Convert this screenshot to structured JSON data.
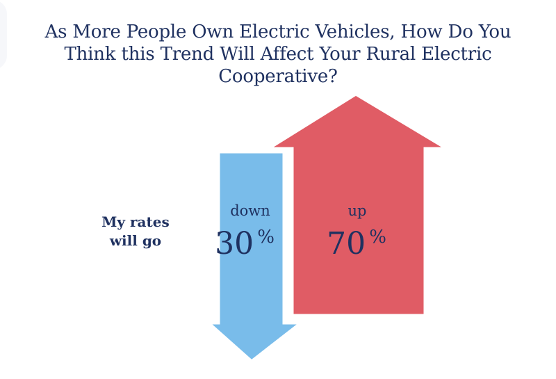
{
  "chart_data": {
    "type": "bar",
    "title": "As More People Own Electric Vehicles, How Do You Think this Trend Will Affect Your Rural Electric Cooperative?",
    "ylabel": "My rates will go",
    "categories": [
      "down",
      "up"
    ],
    "values": [
      30,
      70
    ],
    "unit": "%",
    "colors": [
      "#79bcea",
      "#e05c65"
    ]
  }
}
